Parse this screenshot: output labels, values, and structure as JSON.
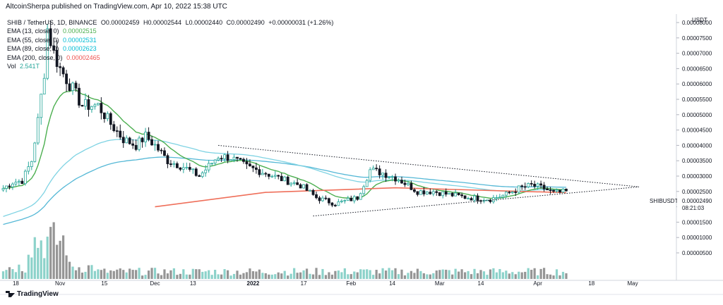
{
  "header": {
    "text": "AltcoinSherpa published on TradingView.com, Apr 10, 2022 15:38 UTC"
  },
  "legend": {
    "title": "SHIB / TetherUS, 1D, BINANCE",
    "ohlc": {
      "o_label": "O",
      "o": "0.00002459",
      "h_label": "H",
      "h": "0.00002544",
      "l_label": "L",
      "l": "0.00002440",
      "c_label": "C",
      "c": "0.00002490",
      "change": "+0.00000031 (+1.26%)"
    },
    "rows": [
      {
        "label": "EMA (13, close, 0)",
        "value": "0.00002515",
        "color": "#4caf50"
      },
      {
        "label": "EMA (55, close, 0)",
        "value": "0.00002531",
        "color": "#00bcd4"
      },
      {
        "label": "EMA (89, close, 0)",
        "value": "0.00002623",
        "color": "#00bcd4"
      },
      {
        "label": "EMA (200, close, 0)",
        "value": "0.00002465",
        "color": "#ef5350"
      },
      {
        "label": "Vol",
        "value": "2.541T",
        "color": "#26a69a"
      }
    ]
  },
  "price_axis": {
    "currency": "USDT",
    "ticks": [
      "0.00008000",
      "0.00007500",
      "0.00007000",
      "0.00006500",
      "0.00006000",
      "0.00005500",
      "0.00005000",
      "0.00004500",
      "0.00004000",
      "0.00003500",
      "0.00003000",
      "0.00002500",
      "0.00002000",
      "0.00001500",
      "0.00001000",
      "0.00000500"
    ],
    "symbol_label": "SHIBUSDT",
    "last_price": "0.00002490",
    "countdown": "08:21:03"
  },
  "time_axis": {
    "ticks": [
      "18",
      "Nov",
      "15",
      "Dec",
      "13",
      "2022",
      "17",
      "Feb",
      "14",
      "Mar",
      "14",
      "Apr",
      "18",
      "May"
    ]
  },
  "footer": {
    "brand": "TradingView"
  },
  "colors": {
    "up": "#26a69a",
    "down": "#131722",
    "ema13": "#4caf50",
    "ema55": "#7fd3e3",
    "ema89": "#55b8d6",
    "ema200": "#ef6f5a",
    "vol_up": "#7fcdc4",
    "vol_down": "#8a8a8a",
    "triangle": "#131722"
  },
  "chart_data": {
    "type": "candlestick",
    "symbol": "SHIB / TetherUS",
    "interval": "1D",
    "y_unit": "USDT",
    "ylim": [
      2.5e-06,
      8.2e-06
    ],
    "x_range": [
      "2021-10-13",
      "2022-05-03"
    ],
    "candles": [
      {
        "date": "2021-10-14",
        "close": 2.6e-05
      },
      {
        "date": "2021-10-17",
        "close": 2.8e-05
      },
      {
        "date": "2021-10-20",
        "close": 2.85e-05
      },
      {
        "date": "2021-10-23",
        "close": 3.5e-05
      },
      {
        "date": "2021-10-25",
        "close": 4.8e-05
      },
      {
        "date": "2021-10-27",
        "close": 6.4e-05
      },
      {
        "date": "2021-10-28",
        "close": 7.8e-05
      },
      {
        "date": "2021-10-30",
        "close": 7e-05
      },
      {
        "date": "2021-11-01",
        "close": 6.5e-05
      },
      {
        "date": "2021-11-04",
        "close": 6e-05
      },
      {
        "date": "2021-11-08",
        "close": 5.3e-05
      },
      {
        "date": "2021-11-13",
        "close": 5.3e-05
      },
      {
        "date": "2021-11-17",
        "close": 4.7e-05
      },
      {
        "date": "2021-11-21",
        "close": 4.2e-05
      },
      {
        "date": "2021-11-25",
        "close": 4e-05
      },
      {
        "date": "2021-11-28",
        "close": 4.3e-05
      },
      {
        "date": "2021-12-01",
        "close": 4e-05
      },
      {
        "date": "2021-12-05",
        "close": 3.5e-05
      },
      {
        "date": "2021-12-10",
        "close": 3.3e-05
      },
      {
        "date": "2021-12-15",
        "close": 3e-05
      },
      {
        "date": "2021-12-21",
        "close": 3.65e-05
      },
      {
        "date": "2021-12-25",
        "close": 3.6e-05
      },
      {
        "date": "2021-12-30",
        "close": 3.3e-05
      },
      {
        "date": "2022-01-05",
        "close": 3.1e-05
      },
      {
        "date": "2022-01-10",
        "close": 2.9e-05
      },
      {
        "date": "2022-01-16",
        "close": 2.7e-05
      },
      {
        "date": "2022-01-21",
        "close": 2.3e-05
      },
      {
        "date": "2022-01-27",
        "close": 2.1e-05
      },
      {
        "date": "2022-02-03",
        "close": 2.3e-05
      },
      {
        "date": "2022-02-07",
        "close": 3.2e-05
      },
      {
        "date": "2022-02-11",
        "close": 3.1e-05
      },
      {
        "date": "2022-02-16",
        "close": 2.9e-05
      },
      {
        "date": "2022-02-22",
        "close": 2.5e-05
      },
      {
        "date": "2022-02-27",
        "close": 2.5e-05
      },
      {
        "date": "2022-03-04",
        "close": 2.4e-05
      },
      {
        "date": "2022-03-10",
        "close": 2.3e-05
      },
      {
        "date": "2022-03-17",
        "close": 2.25e-05
      },
      {
        "date": "2022-03-22",
        "close": 2.4e-05
      },
      {
        "date": "2022-03-26",
        "close": 2.6e-05
      },
      {
        "date": "2022-03-30",
        "close": 2.7e-05
      },
      {
        "date": "2022-04-03",
        "close": 2.6e-05
      },
      {
        "date": "2022-04-06",
        "close": 2.45e-05
      },
      {
        "date": "2022-04-10",
        "close": 2.49e-05
      }
    ],
    "ema200": [
      {
        "date": "2021-12-01",
        "value": 2e-05
      },
      {
        "date": "2022-01-05",
        "value": 2.47e-05
      },
      {
        "date": "2022-02-15",
        "value": 2.62e-05
      },
      {
        "date": "2022-04-10",
        "value": 2.46e-05
      }
    ],
    "triangle": {
      "upper": [
        {
          "date": "2021-12-21",
          "value": 4e-05
        },
        {
          "date": "2022-05-03",
          "value": 2.65e-05
        }
      ],
      "lower": [
        {
          "date": "2022-01-20",
          "value": 1.7e-05
        },
        {
          "date": "2022-05-03",
          "value": 2.65e-05
        }
      ]
    }
  }
}
